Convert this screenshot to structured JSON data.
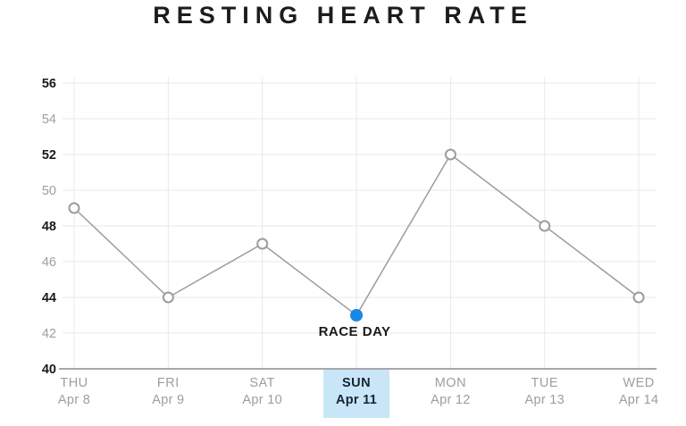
{
  "chart_data": {
    "type": "line",
    "title": "RESTING HEART RATE",
    "xlabel": "",
    "ylabel": "",
    "categories": [
      {
        "day": "THU",
        "date": "Apr 8"
      },
      {
        "day": "FRI",
        "date": "Apr 9"
      },
      {
        "day": "SAT",
        "date": "Apr 10"
      },
      {
        "day": "SUN",
        "date": "Apr 11"
      },
      {
        "day": "MON",
        "date": "Apr 12"
      },
      {
        "day": "TUE",
        "date": "Apr 13"
      },
      {
        "day": "WED",
        "date": "Apr 14"
      }
    ],
    "values": [
      49,
      44,
      47,
      43,
      52,
      48,
      44
    ],
    "ylim": [
      40,
      56
    ],
    "yticks": [
      56,
      54,
      52,
      50,
      48,
      46,
      44,
      42,
      40
    ],
    "ybold_ticks": [
      56,
      52,
      48,
      44,
      40
    ],
    "grid": true,
    "legend": "none",
    "highlight": {
      "index": 3,
      "annotation": "RACE DAY",
      "dot_color": "#1789e4",
      "box_color": "#c9e6f8"
    },
    "colors": {
      "line": "#9c9c9c",
      "marker_fill": "#ffffff",
      "marker_stroke": "#9c9c9c",
      "grid": "#e8e8e8",
      "axis": "#8c8c8c",
      "ytick_bold": "#1a1a1a",
      "ytick_light": "#9e9e9e",
      "xlabel_text": "#9e9e9e",
      "xlabel_highlight_text": "#16242e",
      "title": "#1c1c1c",
      "annotation_text": "#1a1a1a"
    }
  }
}
